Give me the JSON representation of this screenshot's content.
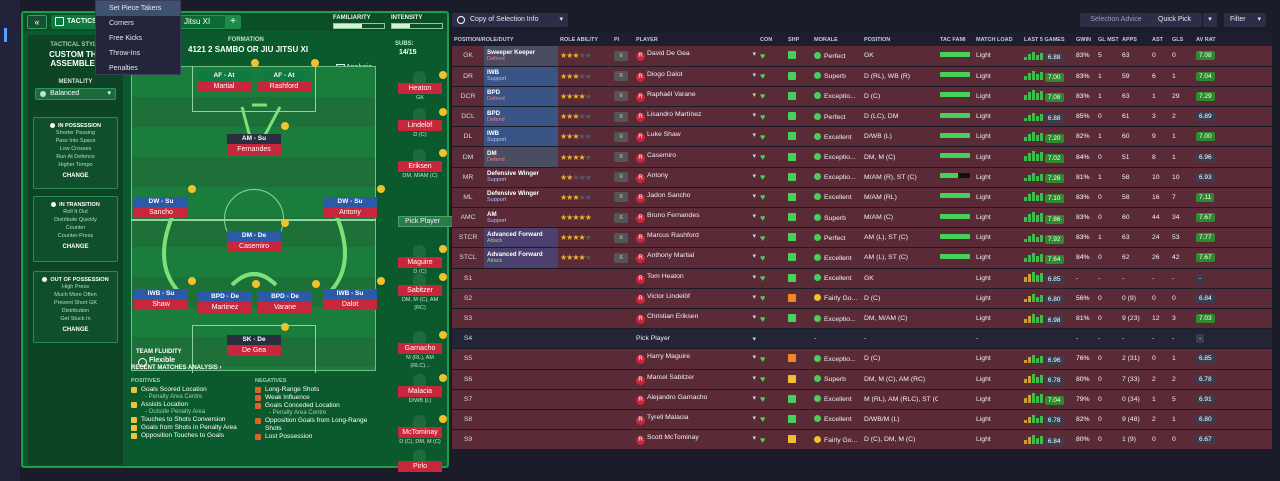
{
  "header": {
    "back": "«",
    "tactics_tab": "TACTICS",
    "formation_select": "Jitsu XI",
    "add": "+",
    "familiarity": "FAMILIARITY",
    "intensity": "INTENSITY",
    "familiarity_level": 0.55,
    "intensity_level": 0.35
  },
  "menu": [
    "Set Piece Takers",
    "Corners",
    "Free Kicks",
    "Throw-Ins",
    "Penalties"
  ],
  "sidebar": {
    "title": "TACTICAL STYLE",
    "name": "CUSTOM THE ASSEMBLER",
    "mentality_label": "MENTALITY",
    "mentality": "Balanced",
    "possession": {
      "title": "IN POSSESSION",
      "items": [
        "Shorter Passing",
        "Pass Into Space",
        "Low Crosses",
        "Run At Defence",
        "Higher Tempo"
      ],
      "change": "CHANGE"
    },
    "transition": {
      "title": "IN TRANSITION",
      "items": [
        "Roll It Out",
        "Distribute Quickly",
        "Counter",
        "Counter-Press"
      ],
      "change": "CHANGE"
    },
    "out": {
      "title": "OUT OF POSSESSION",
      "items": [
        "High Press",
        "Much More Often",
        "Prevent Short GK",
        "Distribution",
        "Get Stuck In"
      ],
      "change": "CHANGE"
    }
  },
  "formation": {
    "label": "FORMATION",
    "name": "4121 2 SAMBO OR JIU JITSU XI",
    "subs_label": "SUBS:",
    "subs_value": "14/15",
    "analysis": "Analysis"
  },
  "pitch_players": [
    {
      "role": "AF - At",
      "name": "Martial"
    },
    {
      "role": "AF - At",
      "name": "Rashford"
    },
    {
      "role": "AM - Su",
      "name": "Fernandes"
    },
    {
      "role": "DW - Su",
      "name": "Sancho"
    },
    {
      "role": "DW - Su",
      "name": "Antony"
    },
    {
      "role": "DM - De",
      "name": "Casemiro"
    },
    {
      "role": "IWB - Su",
      "name": "Shaw"
    },
    {
      "role": "BPD - De",
      "name": "Martinez"
    },
    {
      "role": "BPD - De",
      "name": "Varane"
    },
    {
      "role": "IWB - Su",
      "name": "Dalot"
    },
    {
      "role": "SK - De",
      "name": "De Gea"
    }
  ],
  "subs": [
    {
      "name": "Heaton",
      "pos": "GK"
    },
    {
      "name": "Lindelöf",
      "pos": "D (C)"
    },
    {
      "name": "Eriksen",
      "pos": "DM, M/AM (C)"
    },
    {
      "name": "",
      "pos": ""
    },
    {
      "name": "Maguire",
      "pos": "D (C)"
    },
    {
      "name": "Sabitzer",
      "pos": "DM, M (C), AM (RC)"
    },
    {
      "name": "Garnacho",
      "pos": "M (RL), AM (RLC)..."
    },
    {
      "name": "Malacia",
      "pos": "D/WB (L)"
    },
    {
      "name": "McTominay",
      "pos": "D (C), DM, M (C)"
    },
    {
      "name": "Pirlo",
      "pos": ""
    }
  ],
  "pick_player": "Pick Player",
  "fluidity": {
    "label": "TEAM FLUIDITY",
    "value": "Flexible"
  },
  "recent": {
    "title": "RECENT MATCHES ANALYSIS ›",
    "pos_label": "POSITIVES",
    "neg_label": "NEGATIVES",
    "positives": [
      {
        "t": "Goals Scored Location",
        "s": "- Penalty Area Centre"
      },
      {
        "t": "Assists Location",
        "s": "- Outside Penalty Area"
      },
      {
        "t": "Touches to Shots Conversion",
        "s": ""
      },
      {
        "t": "Goals from Shots in Penalty Area",
        "s": ""
      },
      {
        "t": "Opposition Touches to Goals",
        "s": ""
      }
    ],
    "negatives": [
      {
        "t": "Long-Range Shots",
        "s": ""
      },
      {
        "t": "Weak Influence",
        "s": ""
      },
      {
        "t": "Goals Conceded Location",
        "s": "- Penalty Area Centre"
      },
      {
        "t": "Opposition Goals from Long-Range Shots",
        "s": ""
      },
      {
        "t": "Lost Possession",
        "s": ""
      }
    ]
  },
  "toolbar": {
    "copy": "Copy of Selection Info",
    "selection_advice": "Selection Advice",
    "quick_pick": "Quick Pick",
    "filter": "Filter"
  },
  "columns": [
    "POSITION/ROLE/DUTY",
    "ROLE ABILITY",
    "PI",
    "PLAYER",
    "CON",
    "SHP",
    "MORALE",
    "POSITION",
    "TAC FAMI",
    "MATCH LOAD",
    "LAST 5 GAMES",
    "GWIN",
    "GL MST",
    "APPS",
    "AST",
    "GLS",
    "AV RAT"
  ],
  "rows": [
    {
      "p": "GK",
      "r": "Sweeper Keeper",
      "d": "Defend",
      "c": "m",
      "st": 2.5,
      "n": "David De Gea",
      "mo": "Perfect",
      "ps": "GK",
      "ml": "Light",
      "av": "6.88",
      "gw": "83%",
      "gm": "5",
      "ap": "63",
      "as": "0",
      "gl": "0",
      "rt": "7.08"
    },
    {
      "p": "DR",
      "r": "IWB",
      "d": "Support",
      "c": "d",
      "st": 2.5,
      "n": "Diogo Dalot",
      "mo": "Superb",
      "ps": "D (RL), WB (R)",
      "ml": "Light",
      "av": "7.00",
      "gw": "83%",
      "gm": "1",
      "ap": "59",
      "as": "6",
      "gl": "1",
      "rt": "7.04"
    },
    {
      "p": "DCR",
      "r": "BPD",
      "d": "Defend",
      "c": "d",
      "st": 4,
      "n": "Raphaël Varane",
      "mo": "Exceptio...",
      "ps": "D (C)",
      "ml": "Light",
      "av": "7.08",
      "gw": "83%",
      "gm": "1",
      "ap": "63",
      "as": "1",
      "gl": "29",
      "rt": "7.29"
    },
    {
      "p": "DCL",
      "r": "BPD",
      "d": "Defend",
      "c": "d",
      "st": 3,
      "n": "Lisandro Martínez",
      "mo": "Perfect",
      "ps": "D (LC), DM",
      "ml": "Light",
      "av": "6.88",
      "gw": "85%",
      "gm": "0",
      "ap": "61",
      "as": "3",
      "gl": "2",
      "rt": "6.89"
    },
    {
      "p": "DL",
      "r": "IWB",
      "d": "Support",
      "c": "d",
      "st": 3,
      "n": "Luke Shaw",
      "mo": "Excellent",
      "ps": "D/WB (L)",
      "ml": "Light",
      "av": "7.20",
      "gw": "82%",
      "gm": "1",
      "ap": "60",
      "as": "9",
      "gl": "1",
      "rt": "7.00"
    },
    {
      "p": "DM",
      "r": "DM",
      "d": "Defend",
      "c": "m",
      "st": 3.5,
      "n": "Casemiro",
      "mo": "Exceptio...",
      "ps": "DM, M (C)",
      "ml": "Light",
      "av": "7.02",
      "gw": "84%",
      "gm": "0",
      "ap": "51",
      "as": "8",
      "gl": "1",
      "rt": "6.96"
    },
    {
      "p": "MR",
      "r": "Defensive Winger",
      "d": "Support",
      "c": "",
      "st": 2,
      "n": "Antony",
      "mo": "Exceptio...",
      "ps": "M/AM (R), ST (C)",
      "ml": "Light",
      "av": "7.26",
      "gw": "81%",
      "gm": "1",
      "ap": "58",
      "as": "10",
      "gl": "10",
      "rt": "6.93"
    },
    {
      "p": "ML",
      "r": "Defensive Winger",
      "d": "Support",
      "c": "",
      "st": 3,
      "n": "Jadon Sancho",
      "mo": "Excellent",
      "ps": "M/AM (RL)",
      "ml": "Light",
      "av": "7.10",
      "gw": "83%",
      "gm": "0",
      "ap": "58",
      "as": "16",
      "gl": "7",
      "rt": "7.11"
    },
    {
      "p": "AMC",
      "r": "AM",
      "d": "Support",
      "c": "",
      "st": 4.5,
      "n": "Bruno Fernandes",
      "mo": "Superb",
      "ps": "M/AM (C)",
      "ml": "Light",
      "av": "7.86",
      "gw": "83%",
      "gm": "0",
      "ap": "60",
      "as": "44",
      "gl": "34",
      "rt": "7.67"
    },
    {
      "p": "STCR",
      "r": "Advanced Forward",
      "d": "Attack",
      "c": "a",
      "st": 4,
      "n": "Marcus Rashford",
      "mo": "Perfect",
      "ps": "AM (L), ST (C)",
      "ml": "Light",
      "av": "7.92",
      "gw": "83%",
      "gm": "1",
      "ap": "63",
      "as": "24",
      "gl": "53",
      "rt": "7.77"
    },
    {
      "p": "STCL",
      "r": "Advanced Forward",
      "d": "Attack",
      "c": "a",
      "st": 3.5,
      "n": "Anthony Martial",
      "mo": "Excellent",
      "ps": "AM (L), ST (C)",
      "ml": "Light",
      "av": "7.64",
      "gw": "84%",
      "gm": "0",
      "ap": "62",
      "as": "26",
      "gl": "42",
      "rt": "7.67"
    },
    {
      "p": "S1",
      "r": "",
      "d": "",
      "c": "",
      "st": 0,
      "n": "Tom Heaton",
      "mo": "Excellent",
      "ps": "GK",
      "ml": "Light",
      "av": "6.85",
      "gw": "-",
      "gm": "-",
      "ap": "-",
      "as": "-",
      "gl": "-",
      "rt": "-"
    },
    {
      "p": "S2",
      "r": "",
      "d": "",
      "c": "",
      "st": 0,
      "n": "Victor Lindelöf",
      "mo": "Fairly Go...",
      "ps": "D (C)",
      "ml": "Light",
      "av": "6.80",
      "gw": "56%",
      "gm": "0",
      "ap": "0 (9)",
      "as": "0",
      "gl": "0",
      "rt": "6.84"
    },
    {
      "p": "S3",
      "r": "",
      "d": "",
      "c": "",
      "st": 0,
      "n": "Christian Eriksen",
      "mo": "Exceptio...",
      "ps": "DM, M/AM (C)",
      "ml": "Light",
      "av": "6.98",
      "gw": "81%",
      "gm": "0",
      "ap": "9 (23)",
      "as": "12",
      "gl": "3",
      "rt": "7.03"
    },
    {
      "p": "S4",
      "r": "",
      "d": "",
      "c": "",
      "st": 0,
      "n": "Pick Player",
      "mo": "-",
      "ps": "-",
      "ml": "-",
      "av": "",
      "gw": "-",
      "gm": "-",
      "ap": "-",
      "as": "-",
      "gl": "-",
      "rt": "-"
    },
    {
      "p": "S5",
      "r": "",
      "d": "",
      "c": "",
      "st": 0,
      "n": "Harry Maguire",
      "mo": "Exceptio...",
      "ps": "D (C)",
      "ml": "Light",
      "av": "6.96",
      "gw": "76%",
      "gm": "0",
      "ap": "2 (31)",
      "as": "0",
      "gl": "1",
      "rt": "6.85"
    },
    {
      "p": "S6",
      "r": "",
      "d": "",
      "c": "",
      "st": 0,
      "n": "Marcel Sabitzer",
      "mo": "Superb",
      "ps": "DM, M (C), AM (RC)",
      "ml": "Light",
      "av": "6.78",
      "gw": "80%",
      "gm": "0",
      "ap": "7 (33)",
      "as": "2",
      "gl": "2",
      "rt": "6.78"
    },
    {
      "p": "S7",
      "r": "",
      "d": "",
      "c": "",
      "st": 0,
      "n": "Alejandro Garnacho",
      "mo": "Excellent",
      "ps": "M (RL), AM (RLC), ST (C)",
      "ml": "Light",
      "av": "7.04",
      "gw": "79%",
      "gm": "0",
      "ap": "0 (34)",
      "as": "1",
      "gl": "5",
      "rt": "6.91"
    },
    {
      "p": "S8",
      "r": "",
      "d": "",
      "c": "",
      "st": 0,
      "n": "Tyrell Malacia",
      "mo": "Excellent",
      "ps": "D/WB/M (L)",
      "ml": "Light",
      "av": "6.78",
      "gw": "82%",
      "gm": "0",
      "ap": "9 (48)",
      "as": "2",
      "gl": "1",
      "rt": "6.80"
    },
    {
      "p": "S9",
      "r": "",
      "d": "",
      "c": "",
      "st": 0,
      "n": "Scott McTominay",
      "mo": "Fairly Go...",
      "ps": "D (C), DM, M (C)",
      "ml": "Light",
      "av": "6.84",
      "gw": "80%",
      "gm": "0",
      "ap": "1 (9)",
      "as": "0",
      "gl": "0",
      "rt": "6.67"
    }
  ],
  "colors": {
    "accent": "#1d9c4c",
    "name_red": "#c8263a",
    "row_bg": "#5a2a36"
  }
}
